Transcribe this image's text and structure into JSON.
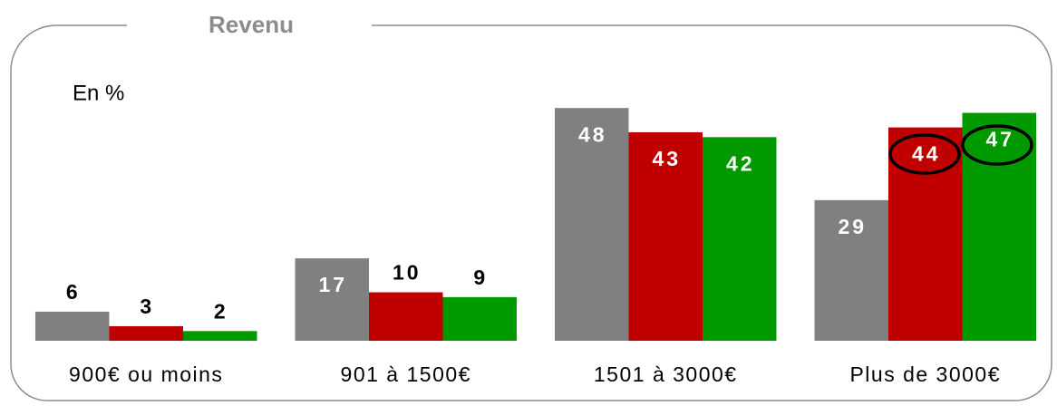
{
  "chart_data": {
    "type": "bar",
    "title": "Revenu",
    "annotation": "En %",
    "categories": [
      "900€ ou moins",
      "901 à 1500€",
      "1501 à 3000€",
      "Plus de 3000€"
    ],
    "series": [
      {
        "color": "#808080",
        "values": [
          6,
          17,
          48,
          29
        ]
      },
      {
        "color": "#c00000",
        "values": [
          3,
          10,
          43,
          44
        ]
      },
      {
        "color": "#009900",
        "values": [
          2,
          9,
          42,
          47
        ]
      }
    ]
  }
}
